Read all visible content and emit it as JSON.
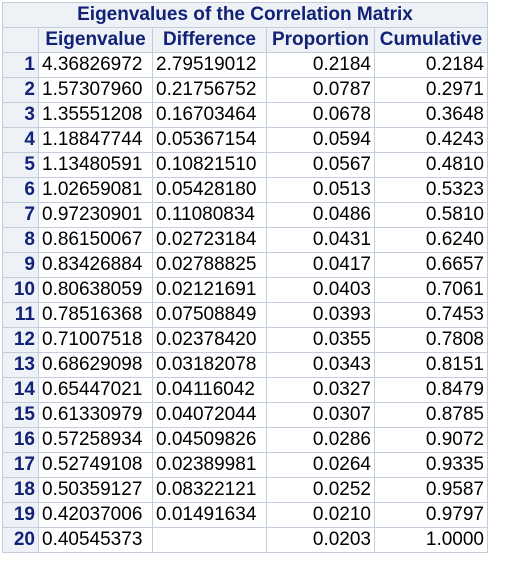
{
  "table": {
    "title": "Eigenvalues of the Correlation Matrix",
    "columns": [
      "Eigenvalue",
      "Difference",
      "Proportion",
      "Cumulative"
    ],
    "rows": [
      {
        "n": "1",
        "eigenvalue": "4.36826972",
        "difference": "2.79519012",
        "proportion": "0.2184",
        "cumulative": "0.2184"
      },
      {
        "n": "2",
        "eigenvalue": "1.57307960",
        "difference": "0.21756752",
        "proportion": "0.0787",
        "cumulative": "0.2971"
      },
      {
        "n": "3",
        "eigenvalue": "1.35551208",
        "difference": "0.16703464",
        "proportion": "0.0678",
        "cumulative": "0.3648"
      },
      {
        "n": "4",
        "eigenvalue": "1.18847744",
        "difference": "0.05367154",
        "proportion": "0.0594",
        "cumulative": "0.4243"
      },
      {
        "n": "5",
        "eigenvalue": "1.13480591",
        "difference": "0.10821510",
        "proportion": "0.0567",
        "cumulative": "0.4810"
      },
      {
        "n": "6",
        "eigenvalue": "1.02659081",
        "difference": "0.05428180",
        "proportion": "0.0513",
        "cumulative": "0.5323"
      },
      {
        "n": "7",
        "eigenvalue": "0.97230901",
        "difference": "0.11080834",
        "proportion": "0.0486",
        "cumulative": "0.5810"
      },
      {
        "n": "8",
        "eigenvalue": "0.86150067",
        "difference": "0.02723184",
        "proportion": "0.0431",
        "cumulative": "0.6240"
      },
      {
        "n": "9",
        "eigenvalue": "0.83426884",
        "difference": "0.02788825",
        "proportion": "0.0417",
        "cumulative": "0.6657"
      },
      {
        "n": "10",
        "eigenvalue": "0.80638059",
        "difference": "0.02121691",
        "proportion": "0.0403",
        "cumulative": "0.7061"
      },
      {
        "n": "11",
        "eigenvalue": "0.78516368",
        "difference": "0.07508849",
        "proportion": "0.0393",
        "cumulative": "0.7453"
      },
      {
        "n": "12",
        "eigenvalue": "0.71007518",
        "difference": "0.02378420",
        "proportion": "0.0355",
        "cumulative": "0.7808"
      },
      {
        "n": "13",
        "eigenvalue": "0.68629098",
        "difference": "0.03182078",
        "proportion": "0.0343",
        "cumulative": "0.8151"
      },
      {
        "n": "14",
        "eigenvalue": "0.65447021",
        "difference": "0.04116042",
        "proportion": "0.0327",
        "cumulative": "0.8479"
      },
      {
        "n": "15",
        "eigenvalue": "0.61330979",
        "difference": "0.04072044",
        "proportion": "0.0307",
        "cumulative": "0.8785"
      },
      {
        "n": "16",
        "eigenvalue": "0.57258934",
        "difference": "0.04509826",
        "proportion": "0.0286",
        "cumulative": "0.9072"
      },
      {
        "n": "17",
        "eigenvalue": "0.52749108",
        "difference": "0.02389981",
        "proportion": "0.0264",
        "cumulative": "0.9335"
      },
      {
        "n": "18",
        "eigenvalue": "0.50359127",
        "difference": "0.08322121",
        "proportion": "0.0252",
        "cumulative": "0.9587"
      },
      {
        "n": "19",
        "eigenvalue": "0.42037006",
        "difference": "0.01491634",
        "proportion": "0.0210",
        "cumulative": "0.9797"
      },
      {
        "n": "20",
        "eigenvalue": "0.40545373",
        "difference": "",
        "proportion": "0.0203",
        "cumulative": "1.0000"
      }
    ]
  },
  "colors": {
    "header_background": "#eef1f6",
    "header_text": "#112277",
    "grid_lines": "#c3cddb",
    "cell_background": "#ffffff"
  }
}
